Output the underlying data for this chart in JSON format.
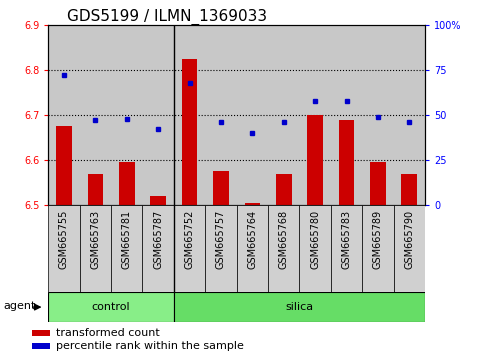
{
  "title": "GDS5199 / ILMN_1369033",
  "samples": [
    "GSM665755",
    "GSM665763",
    "GSM665781",
    "GSM665787",
    "GSM665752",
    "GSM665757",
    "GSM665764",
    "GSM665768",
    "GSM665780",
    "GSM665783",
    "GSM665789",
    "GSM665790"
  ],
  "red_values": [
    6.675,
    6.57,
    6.595,
    6.52,
    6.825,
    6.575,
    6.505,
    6.57,
    6.7,
    6.69,
    6.595,
    6.57
  ],
  "blue_values": [
    72,
    47,
    48,
    42,
    68,
    46,
    40,
    46,
    58,
    58,
    49,
    46
  ],
  "ylim_left": [
    6.5,
    6.9
  ],
  "ylim_right": [
    0,
    100
  ],
  "yticks_left": [
    6.5,
    6.6,
    6.7,
    6.8,
    6.9
  ],
  "yticks_right": [
    0,
    25,
    50,
    75,
    100
  ],
  "ytick_labels_right": [
    "0",
    "25",
    "50",
    "75",
    "100%"
  ],
  "control_count": 4,
  "silica_count": 8,
  "bar_color": "#cc0000",
  "dot_color": "#0000cc",
  "plot_bg_color": "#c8c8c8",
  "tick_bg_color": "#d0d0d0",
  "control_color": "#88ee88",
  "silica_color": "#66dd66",
  "agent_label": "agent",
  "control_label": "control",
  "silica_label": "silica",
  "legend_red": "transformed count",
  "legend_blue": "percentile rank within the sample",
  "title_fontsize": 11,
  "tick_fontsize": 7,
  "label_fontsize": 8,
  "bar_width": 0.5
}
